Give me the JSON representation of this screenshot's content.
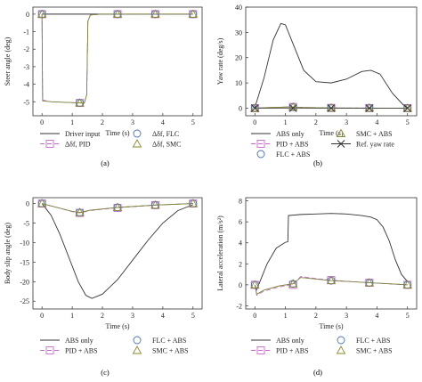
{
  "figure": {
    "panel_captions": [
      "(a)",
      "(b)",
      "(c)",
      "(d)"
    ]
  },
  "chart_data": [
    {
      "type": "line",
      "caption": "(a)",
      "xlabel": "Time (s)",
      "ylabel": "Steer angle (deg)",
      "xlim": [
        -0.3,
        5.3
      ],
      "ylim": [
        -5.8,
        0.4
      ],
      "xticks": [
        0,
        1,
        2,
        3,
        4,
        5
      ],
      "yticks": [
        0,
        -1,
        -2,
        -3,
        -4,
        -5
      ],
      "legend": [
        "Driver input",
        "Δδf, PID",
        "Δδf, FLC",
        "Δδf, SMC"
      ],
      "legend_placement": "below",
      "series": [
        {
          "name": "Driver input",
          "color": "#333333",
          "dash": "",
          "marker": "none",
          "points": [
            [
              0,
              0
            ],
            [
              5,
              0
            ]
          ]
        },
        {
          "name": "Δδf, PID",
          "color": "#cc66cc",
          "dash": "5,3",
          "marker": "square",
          "points": [
            [
              0,
              0
            ],
            [
              0.02,
              -4.9
            ],
            [
              0.3,
              -5.0
            ],
            [
              1.0,
              -5.05
            ],
            [
              1.4,
              -5.08
            ],
            [
              1.48,
              -4.6
            ],
            [
              1.52,
              -0.4
            ],
            [
              1.6,
              -0.05
            ],
            [
              2,
              0
            ],
            [
              2.5,
              0
            ],
            [
              3.75,
              0
            ],
            [
              5,
              0
            ]
          ]
        },
        {
          "name": "Δδf, FLC",
          "color": "#4a6fbf",
          "dash": "",
          "marker": "circle",
          "points": [
            [
              0,
              0
            ],
            [
              0.02,
              -4.95
            ],
            [
              0.3,
              -5.0
            ],
            [
              1.0,
              -5.05
            ],
            [
              1.4,
              -5.08
            ],
            [
              1.48,
              -4.6
            ],
            [
              1.52,
              -0.4
            ],
            [
              1.6,
              -0.05
            ],
            [
              2,
              0
            ],
            [
              2.5,
              0
            ],
            [
              3.75,
              0
            ],
            [
              5,
              0
            ]
          ]
        },
        {
          "name": "Δδf, SMC",
          "color": "#8a8a2a",
          "dash": "",
          "marker": "triangle",
          "points": [
            [
              0,
              0
            ],
            [
              0.02,
              -4.95
            ],
            [
              0.3,
              -5.0
            ],
            [
              1.0,
              -5.05
            ],
            [
              1.4,
              -5.08
            ],
            [
              1.48,
              -4.6
            ],
            [
              1.52,
              -0.4
            ],
            [
              1.6,
              -0.05
            ],
            [
              2,
              0
            ],
            [
              2.5,
              0
            ],
            [
              3.75,
              0
            ],
            [
              5,
              0
            ]
          ]
        }
      ],
      "marker_x": [
        0,
        1.25,
        2.5,
        3.75,
        5
      ]
    },
    {
      "type": "line",
      "caption": "(b)",
      "xlabel": "Time (s)",
      "ylabel": "Yaw rate (deg/s)",
      "xlim": [
        -0.3,
        5.3
      ],
      "ylim": [
        -3,
        40
      ],
      "xticks": [
        0,
        1,
        2,
        3,
        4,
        5
      ],
      "yticks": [
        0,
        10,
        20,
        30,
        40
      ],
      "legend": [
        "ABS only",
        "PID + ABS",
        "FLC + ABS",
        "SMC + ABS",
        "Ref. yaw rate"
      ],
      "legend_placement": "below",
      "series": [
        {
          "name": "ABS only",
          "color": "#333333",
          "dash": "",
          "marker": "none",
          "points": [
            [
              0,
              0.3
            ],
            [
              0.3,
              12
            ],
            [
              0.6,
              27
            ],
            [
              0.85,
              33.5
            ],
            [
              1.0,
              33
            ],
            [
              1.3,
              24
            ],
            [
              1.6,
              15
            ],
            [
              2.0,
              10.5
            ],
            [
              2.5,
              10
            ],
            [
              3.0,
              11.5
            ],
            [
              3.5,
              14.5
            ],
            [
              3.8,
              15
            ],
            [
              4.1,
              13.5
            ],
            [
              4.5,
              6
            ],
            [
              4.9,
              0.8
            ],
            [
              5.0,
              0.3
            ]
          ]
        },
        {
          "name": "PID + ABS",
          "color": "#cc66cc",
          "dash": "5,3",
          "marker": "square",
          "points": [
            [
              0,
              0
            ],
            [
              0.3,
              0.2
            ],
            [
              1.2,
              0.5
            ],
            [
              1.6,
              0.3
            ],
            [
              2.5,
              0.1
            ],
            [
              5,
              0
            ]
          ]
        },
        {
          "name": "FLC + ABS",
          "color": "#4a6fbf",
          "dash": "",
          "marker": "circle",
          "points": [
            [
              0,
              0
            ],
            [
              0.3,
              0.2
            ],
            [
              1.2,
              0.5
            ],
            [
              1.6,
              0.3
            ],
            [
              2.5,
              0.1
            ],
            [
              5,
              0
            ]
          ]
        },
        {
          "name": "SMC + ABS",
          "color": "#8a8a2a",
          "dash": "",
          "marker": "triangle",
          "points": [
            [
              0,
              0
            ],
            [
              0.3,
              0.2
            ],
            [
              1.2,
              0.5
            ],
            [
              1.6,
              0.3
            ],
            [
              2.5,
              0.1
            ],
            [
              5,
              0
            ]
          ]
        },
        {
          "name": "Ref. yaw rate",
          "color": "#333333",
          "dash": "",
          "marker": "x",
          "points": [
            [
              0,
              0
            ],
            [
              5,
              0
            ]
          ]
        }
      ],
      "marker_x": [
        0,
        1.25,
        2.5,
        3.75,
        5
      ]
    },
    {
      "type": "line",
      "caption": "(c)",
      "xlabel": "Time (s)",
      "ylabel": "Body slip angle (deg)",
      "xlim": [
        -0.3,
        5.3
      ],
      "ylim": [
        -27,
        1.5
      ],
      "xticks": [
        0,
        1,
        2,
        3,
        4,
        5
      ],
      "yticks": [
        0,
        -5,
        -10,
        -15,
        -20,
        -25
      ],
      "legend": [
        "ABS only",
        "PID + ABS",
        "FLC + ABS",
        "SMC + ABS"
      ],
      "legend_placement": "below",
      "series": [
        {
          "name": "ABS only",
          "color": "#333333",
          "dash": "",
          "marker": "none",
          "points": [
            [
              0,
              0
            ],
            [
              0.3,
              -3
            ],
            [
              0.6,
              -8
            ],
            [
              0.9,
              -14
            ],
            [
              1.2,
              -20
            ],
            [
              1.45,
              -23.5
            ],
            [
              1.65,
              -24.3
            ],
            [
              2.0,
              -23.2
            ],
            [
              2.5,
              -19.5
            ],
            [
              3.0,
              -14.5
            ],
            [
              3.5,
              -9.5
            ],
            [
              4.0,
              -5
            ],
            [
              4.5,
              -1.8
            ],
            [
              5.0,
              -0.3
            ]
          ]
        },
        {
          "name": "PID + ABS",
          "color": "#cc66cc",
          "dash": "5,3",
          "marker": "square",
          "points": [
            [
              0,
              0
            ],
            [
              0.5,
              -1
            ],
            [
              1.0,
              -2.1
            ],
            [
              1.25,
              -2.4
            ],
            [
              1.6,
              -1.8
            ],
            [
              2.5,
              -1.1
            ],
            [
              3.75,
              -0.4
            ],
            [
              5,
              0
            ]
          ]
        },
        {
          "name": "FLC + ABS",
          "color": "#4a6fbf",
          "dash": "",
          "marker": "circle",
          "points": [
            [
              0,
              0
            ],
            [
              0.5,
              -1
            ],
            [
              1.0,
              -2.0
            ],
            [
              1.25,
              -2.3
            ],
            [
              1.6,
              -1.7
            ],
            [
              2.5,
              -1.0
            ],
            [
              3.75,
              -0.4
            ],
            [
              5,
              0
            ]
          ]
        },
        {
          "name": "SMC + ABS",
          "color": "#8a8a2a",
          "dash": "",
          "marker": "triangle",
          "points": [
            [
              0,
              0
            ],
            [
              0.5,
              -1
            ],
            [
              1.0,
              -2.0
            ],
            [
              1.25,
              -2.3
            ],
            [
              1.6,
              -1.7
            ],
            [
              2.5,
              -1.0
            ],
            [
              3.75,
              -0.4
            ],
            [
              5,
              0
            ]
          ]
        }
      ],
      "marker_x": [
        0,
        1.25,
        2.5,
        3.75,
        5
      ]
    },
    {
      "type": "line",
      "caption": "(d)",
      "xlabel": "Time (s)",
      "ylabel": "Lateral acceleration (m/s²)",
      "xlim": [
        -0.3,
        5.3
      ],
      "ylim": [
        -2.3,
        8.3
      ],
      "xticks": [
        0,
        1,
        2,
        3,
        4,
        5
      ],
      "yticks": [
        -2,
        0,
        2,
        4,
        6,
        8
      ],
      "legend": [
        "ABS only",
        "PID + ABS",
        "FLC + ABS",
        "SMC + ABS"
      ],
      "legend_placement": "below",
      "series": [
        {
          "name": "ABS only",
          "color": "#333333",
          "dash": "",
          "marker": "none",
          "points": [
            [
              0,
              0
            ],
            [
              0.05,
              -0.5
            ],
            [
              0.15,
              0.2
            ],
            [
              0.4,
              2
            ],
            [
              0.7,
              3.5
            ],
            [
              1.0,
              4.05
            ],
            [
              1.08,
              4.1
            ],
            [
              1.1,
              6.6
            ],
            [
              1.5,
              6.7
            ],
            [
              2.0,
              6.75
            ],
            [
              2.5,
              6.8
            ],
            [
              3.0,
              6.75
            ],
            [
              3.5,
              6.6
            ],
            [
              3.8,
              6.45
            ],
            [
              4.0,
              6.2
            ],
            [
              4.2,
              5.5
            ],
            [
              4.4,
              4.2
            ],
            [
              4.6,
              2.4
            ],
            [
              4.8,
              1.0
            ],
            [
              5.0,
              0.3
            ]
          ]
        },
        {
          "name": "PID + ABS",
          "color": "#cc66cc",
          "dash": "5,3",
          "marker": "square",
          "points": [
            [
              0,
              0
            ],
            [
              0.06,
              -1.0
            ],
            [
              0.3,
              -0.6
            ],
            [
              0.8,
              -0.2
            ],
            [
              1.25,
              0.0
            ],
            [
              1.5,
              0.8
            ],
            [
              2.0,
              0.6
            ],
            [
              2.5,
              0.45
            ],
            [
              3.2,
              0.3
            ],
            [
              3.75,
              0.2
            ],
            [
              4.4,
              0.1
            ],
            [
              5,
              0
            ]
          ]
        },
        {
          "name": "FLC + ABS",
          "color": "#4a6fbf",
          "dash": "",
          "marker": "circle",
          "points": [
            [
              0,
              0
            ],
            [
              0.06,
              -0.9
            ],
            [
              0.3,
              -0.5
            ],
            [
              0.8,
              -0.1
            ],
            [
              1.25,
              0.1
            ],
            [
              1.5,
              0.7
            ],
            [
              2.0,
              0.55
            ],
            [
              2.5,
              0.4
            ],
            [
              3.2,
              0.3
            ],
            [
              3.75,
              0.2
            ],
            [
              4.4,
              0.1
            ],
            [
              5,
              0
            ]
          ]
        },
        {
          "name": "SMC + ABS",
          "color": "#8a8a2a",
          "dash": "",
          "marker": "triangle",
          "points": [
            [
              0,
              0
            ],
            [
              0.06,
              -0.9
            ],
            [
              0.3,
              -0.5
            ],
            [
              0.8,
              -0.1
            ],
            [
              1.25,
              0.1
            ],
            [
              1.5,
              0.7
            ],
            [
              2.0,
              0.55
            ],
            [
              2.5,
              0.4
            ],
            [
              3.2,
              0.3
            ],
            [
              3.75,
              0.2
            ],
            [
              4.4,
              0.1
            ],
            [
              5,
              0
            ]
          ]
        }
      ],
      "marker_x": [
        0,
        1.25,
        2.5,
        3.75,
        5
      ]
    }
  ]
}
